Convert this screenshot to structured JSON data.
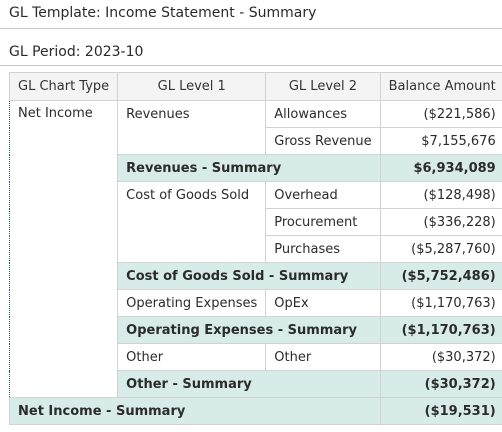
{
  "template_title": "GL Template: Income Statement - Summary",
  "period_label": "GL Period: 2023-10",
  "columns": [
    "GL Chart Type",
    "GL Level 1",
    "GL Level 2",
    "Balance Amount"
  ],
  "chart_type": "Net Income",
  "rows": [
    {
      "level1": "Revenues",
      "level2": "Allowances",
      "amount": "($221,586)"
    },
    {
      "level1": "",
      "level2": "Gross Revenue",
      "amount": "$7,155,676"
    },
    {
      "summary": "Revenues - Summary",
      "amount": "$6,934,089"
    },
    {
      "level1": "Cost of Goods Sold",
      "level2": "Overhead",
      "amount": "($128,498)"
    },
    {
      "level1": "",
      "level2": "Procurement",
      "amount": "($336,228)"
    },
    {
      "level1": "",
      "level2": "Purchases",
      "amount": "($5,287,760)"
    },
    {
      "summary": "Cost of Goods Sold - Summary",
      "amount": "($5,752,486)"
    },
    {
      "level1": "Operating Expenses",
      "level2": "OpEx",
      "amount": "($1,170,763)"
    },
    {
      "summary": "Operating Expenses - Summary",
      "amount": "($1,170,763)"
    },
    {
      "level1": "Other",
      "level2": "Other",
      "amount": "($30,372)"
    },
    {
      "summary": "Other - Summary",
      "amount": "($30,372)"
    }
  ],
  "grand_total": {
    "label": "Net Income - Summary",
    "amount": "($19,531)"
  }
}
